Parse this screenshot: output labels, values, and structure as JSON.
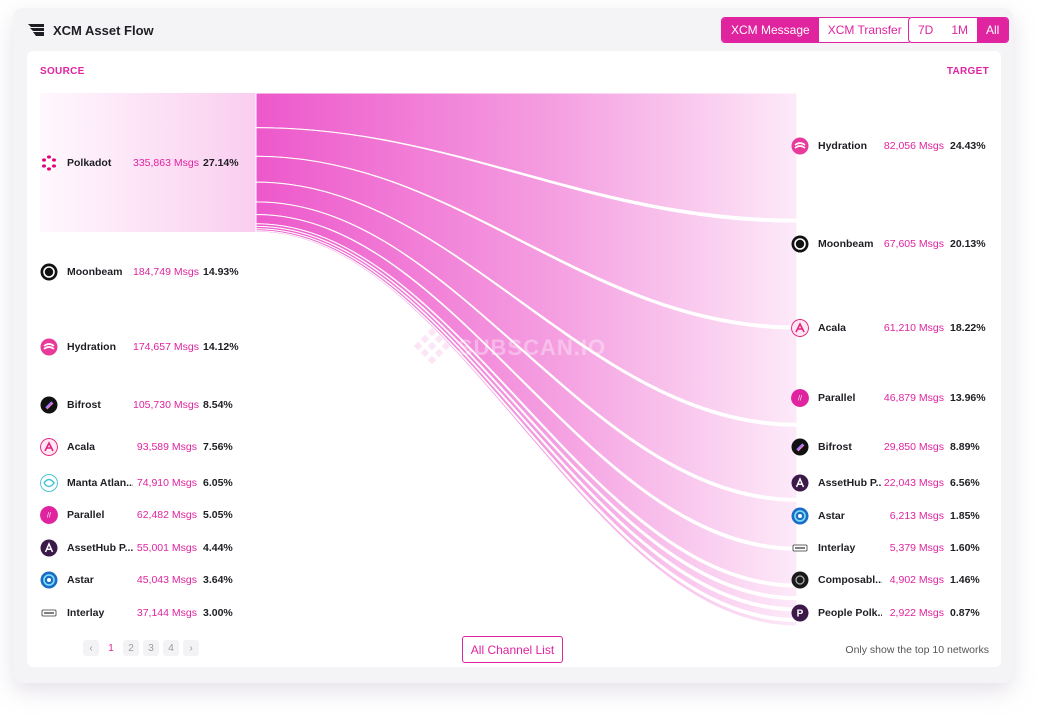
{
  "header": {
    "title": "XCM Asset Flow"
  },
  "mode_tabs": [
    {
      "label": "XCM Message",
      "active": true
    },
    {
      "label": "XCM Transfer",
      "active": false
    }
  ],
  "range_tabs": [
    {
      "label": "7D",
      "active": false
    },
    {
      "label": "1M",
      "active": false
    },
    {
      "label": "All",
      "active": true
    }
  ],
  "source_label": "SOURCE",
  "target_label": "TARGET",
  "sources": [
    {
      "name": "Polkadot",
      "msgs": "335,863 Msgs",
      "pct": "27.14%",
      "icon": "polkadot-icon"
    },
    {
      "name": "Moonbeam",
      "msgs": "184,749 Msgs",
      "pct": "14.93%",
      "icon": "moonbeam-icon"
    },
    {
      "name": "Hydration",
      "msgs": "174,657 Msgs",
      "pct": "14.12%",
      "icon": "hydration-icon"
    },
    {
      "name": "Bifrost",
      "msgs": "105,730 Msgs",
      "pct": "8.54%",
      "icon": "bifrost-icon"
    },
    {
      "name": "Acala",
      "msgs": "93,589 Msgs",
      "pct": "7.56%",
      "icon": "acala-icon"
    },
    {
      "name": "Manta Atlan...",
      "msgs": "74,910 Msgs",
      "pct": "6.05%",
      "icon": "manta-icon"
    },
    {
      "name": "Parallel",
      "msgs": "62,482 Msgs",
      "pct": "5.05%",
      "icon": "parallel-icon"
    },
    {
      "name": "AssetHub P...",
      "msgs": "55,001 Msgs",
      "pct": "4.44%",
      "icon": "assethub-icon"
    },
    {
      "name": "Astar",
      "msgs": "45,043 Msgs",
      "pct": "3.64%",
      "icon": "astar-icon"
    },
    {
      "name": "Interlay",
      "msgs": "37,144 Msgs",
      "pct": "3.00%",
      "icon": "interlay-icon"
    }
  ],
  "targets": [
    {
      "name": "Hydration",
      "msgs": "82,056 Msgs",
      "pct": "24.43%",
      "icon": "hydration-icon"
    },
    {
      "name": "Moonbeam",
      "msgs": "67,605 Msgs",
      "pct": "20.13%",
      "icon": "moonbeam-icon"
    },
    {
      "name": "Acala",
      "msgs": "61,210 Msgs",
      "pct": "18.22%",
      "icon": "acala-icon"
    },
    {
      "name": "Parallel",
      "msgs": "46,879 Msgs",
      "pct": "13.96%",
      "icon": "parallel-icon"
    },
    {
      "name": "Bifrost",
      "msgs": "29,850 Msgs",
      "pct": "8.89%",
      "icon": "bifrost-icon"
    },
    {
      "name": "AssetHub P...",
      "msgs": "22,043 Msgs",
      "pct": "6.56%",
      "icon": "assethub-icon"
    },
    {
      "name": "Astar",
      "msgs": "6,213 Msgs",
      "pct": "1.85%",
      "icon": "astar-icon"
    },
    {
      "name": "Interlay",
      "msgs": "5,379 Msgs",
      "pct": "1.60%",
      "icon": "interlay-icon"
    },
    {
      "name": "Composabl...",
      "msgs": "4,902 Msgs",
      "pct": "1.46%",
      "icon": "composable-icon"
    },
    {
      "name": "People Polk...",
      "msgs": "2,922 Msgs",
      "pct": "0.87%",
      "icon": "people-polkadot-icon"
    }
  ],
  "flows": [
    {
      "source": "Polkadot",
      "target": "Hydration",
      "value": 82056
    },
    {
      "source": "Polkadot",
      "target": "Moonbeam",
      "value": 67605
    },
    {
      "source": "Polkadot",
      "target": "Acala",
      "value": 61210
    },
    {
      "source": "Polkadot",
      "target": "Parallel",
      "value": 46879
    },
    {
      "source": "Polkadot",
      "target": "Bifrost",
      "value": 29850
    },
    {
      "source": "Polkadot",
      "target": "AssetHub P...",
      "value": 22043
    },
    {
      "source": "Polkadot",
      "target": "Astar",
      "value": 6213
    },
    {
      "source": "Polkadot",
      "target": "Interlay",
      "value": 5379
    },
    {
      "source": "Polkadot",
      "target": "Composabl...",
      "value": 4902
    },
    {
      "source": "Polkadot",
      "target": "People Polk...",
      "value": 2922
    }
  ],
  "watermark": "SUBSCAN.IO",
  "pagination": {
    "prev": "‹",
    "next": "›",
    "pages": [
      "1",
      "2",
      "3",
      "4"
    ],
    "current": "1"
  },
  "all_channel_label": "All Channel List",
  "note": "Only show the top 10 networks",
  "colors": {
    "accent": "#e0239f",
    "flow": "#ec4fc8",
    "text": "#1e1e24"
  }
}
